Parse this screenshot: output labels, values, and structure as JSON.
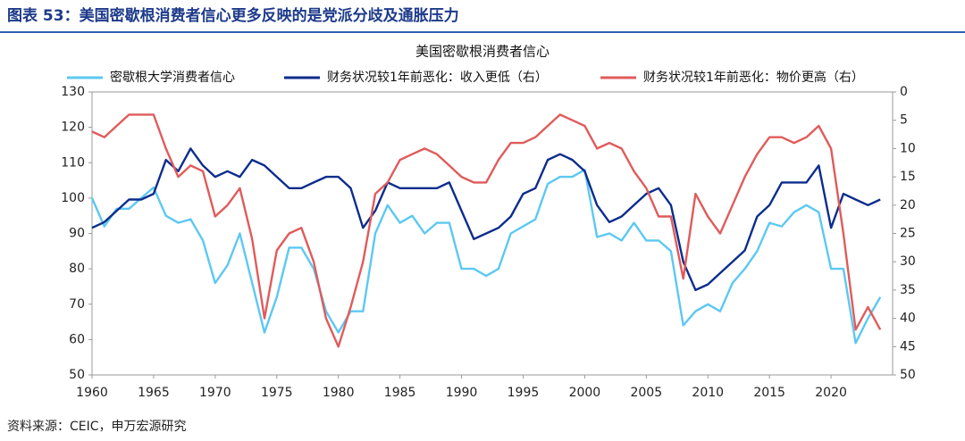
{
  "header": {
    "title": "图表 53：美国密歇根消费者信心更多反映的是党派分歧及通胀压力"
  },
  "chart_data": {
    "type": "line",
    "title": "美国密歇根消费者信心",
    "x": [
      1960,
      1961,
      1962,
      1963,
      1964,
      1965,
      1966,
      1967,
      1968,
      1969,
      1970,
      1971,
      1972,
      1973,
      1974,
      1975,
      1976,
      1977,
      1978,
      1979,
      1980,
      1981,
      1982,
      1983,
      1984,
      1985,
      1986,
      1987,
      1988,
      1989,
      1990,
      1991,
      1992,
      1993,
      1994,
      1995,
      1996,
      1997,
      1998,
      1999,
      2000,
      2001,
      2002,
      2003,
      2004,
      2005,
      2006,
      2007,
      2008,
      2009,
      2010,
      2011,
      2012,
      2013,
      2014,
      2015,
      2016,
      2017,
      2018,
      2019,
      2020,
      2021,
      2022,
      2023,
      2024
    ],
    "series": [
      {
        "name": "密歇根大学消费者信心",
        "color": "#5cc8f2",
        "axis": "y",
        "values": [
          100,
          92,
          97,
          97,
          100,
          103,
          95,
          93,
          94,
          88,
          76,
          81,
          90,
          76,
          62,
          72,
          86,
          86,
          80,
          68,
          62,
          68,
          68,
          90,
          98,
          93,
          95,
          90,
          93,
          93,
          80,
          80,
          78,
          80,
          90,
          92,
          94,
          104,
          106,
          106,
          108,
          89,
          90,
          88,
          93,
          88,
          88,
          85,
          64,
          68,
          70,
          68,
          76,
          80,
          85,
          93,
          92,
          96,
          98,
          96,
          80,
          80,
          59,
          66,
          72
        ]
      },
      {
        "name": "财务状况较1年前恶化：收入更低（右）",
        "color": "#0c2d8c",
        "axis": "y2",
        "values": [
          24,
          23,
          21,
          19,
          19,
          18,
          12,
          14,
          10,
          13,
          15,
          14,
          15,
          12,
          13,
          15,
          17,
          17,
          16,
          15,
          15,
          17,
          24,
          21,
          16,
          17,
          17,
          17,
          17,
          16,
          21,
          26,
          25,
          24,
          22,
          18,
          17,
          12,
          11,
          12,
          14,
          20,
          23,
          22,
          20,
          18,
          17,
          20,
          30,
          35,
          34,
          32,
          30,
          28,
          22,
          20,
          16,
          16,
          16,
          13,
          24,
          18,
          19,
          20,
          19
        ]
      },
      {
        "name": "财务状况较1年前恶化：物价更高（右）",
        "color": "#e05b5b",
        "axis": "y2",
        "values": [
          7,
          8,
          6,
          4,
          4,
          4,
          10,
          15,
          13,
          14,
          22,
          20,
          17,
          26,
          40,
          28,
          25,
          24,
          30,
          40,
          45,
          38,
          30,
          18,
          16,
          12,
          11,
          10,
          11,
          13,
          15,
          16,
          16,
          12,
          9,
          9,
          8,
          6,
          4,
          5,
          6,
          10,
          9,
          10,
          14,
          17,
          22,
          22,
          33,
          18,
          22,
          25,
          20,
          15,
          11,
          8,
          8,
          9,
          8,
          6,
          10,
          25,
          42,
          38,
          42
        ]
      }
    ],
    "xlim": [
      1960,
      2025
    ],
    "xticks": [
      1960,
      1965,
      1970,
      1975,
      1980,
      1985,
      1990,
      1995,
      2000,
      2005,
      2010,
      2015,
      2020
    ],
    "ylim": [
      50,
      130
    ],
    "yticks": [
      50,
      60,
      70,
      80,
      90,
      100,
      110,
      120,
      130
    ],
    "y2lim": [
      50,
      0
    ],
    "y2ticks": [
      0,
      5,
      10,
      15,
      20,
      25,
      30,
      35,
      40,
      45,
      50
    ]
  },
  "footer": {
    "source": "资料来源：CEIC，申万宏源研究"
  }
}
